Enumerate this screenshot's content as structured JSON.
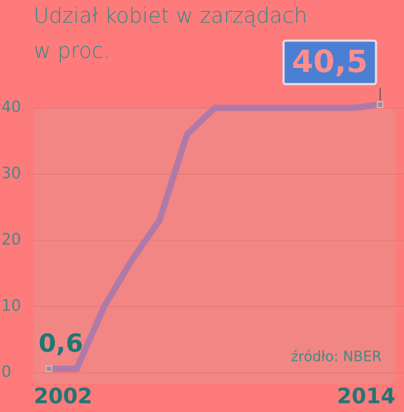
{
  "chart_data": {
    "type": "line",
    "title": "Udział kobiet w zarządach",
    "subtitle": "w proc.",
    "annotation": "źródło: NBER",
    "x": [
      2002,
      2003,
      2004,
      2005,
      2006,
      2007,
      2008,
      2009,
      2010,
      2011,
      2012,
      2013,
      2014
    ],
    "values": [
      0.6,
      0.6,
      10,
      17,
      23,
      36,
      40,
      40,
      40,
      40,
      40,
      40,
      40.5
    ],
    "value_labels": [
      "0,6",
      null,
      null,
      null,
      null,
      null,
      null,
      null,
      null,
      null,
      null,
      null,
      "40,5"
    ],
    "color": "#b07aa8",
    "xlim": [
      2002,
      2014
    ],
    "xticks": [
      2002,
      2014
    ],
    "ylim": [
      0,
      40
    ],
    "yticks": [
      0,
      10,
      20,
      30,
      40
    ],
    "grid": true
  }
}
